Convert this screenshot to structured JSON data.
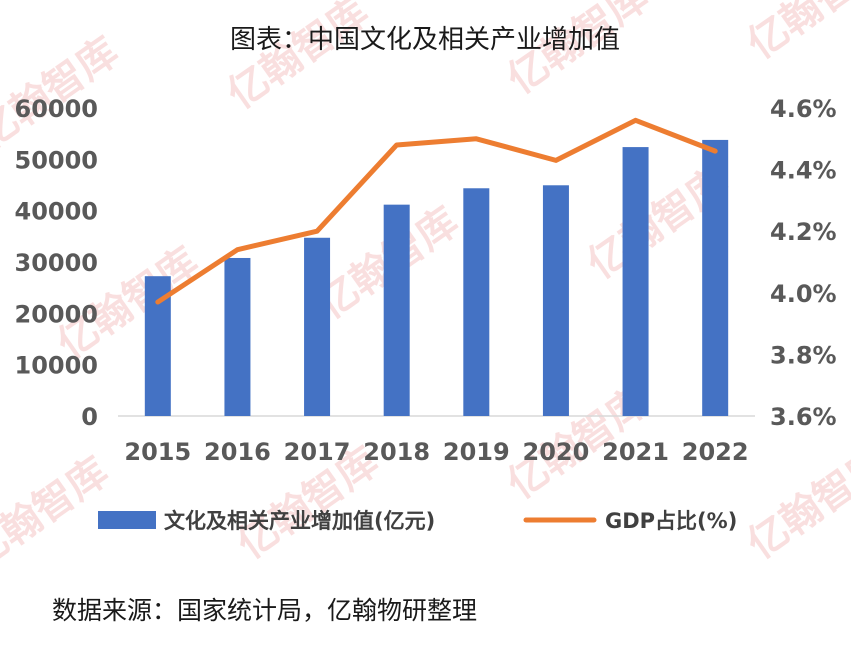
{
  "chart_data": {
    "type": "bar+line",
    "title": "图表：中国文化及相关产业增加值",
    "categories": [
      "2015",
      "2016",
      "2017",
      "2018",
      "2019",
      "2020",
      "2021",
      "2022"
    ],
    "series": [
      {
        "name": "文化及相关产业增加值(亿元)",
        "type": "bar",
        "axis": "left",
        "color": "#4472C4",
        "values": [
          27235,
          30785,
          34722,
          41171,
          44363,
          44945,
          52385,
          53782
        ]
      },
      {
        "name": "GDP占比(%)",
        "type": "line",
        "axis": "right",
        "color": "#ED7D31",
        "values": [
          3.97,
          4.14,
          4.2,
          4.48,
          4.5,
          4.43,
          4.56,
          4.46
        ]
      }
    ],
    "left_axis": {
      "ylim": [
        0,
        60000
      ],
      "ticks": [
        "0",
        "10000",
        "20000",
        "30000",
        "40000",
        "50000",
        "60000"
      ]
    },
    "right_axis": {
      "ylim": [
        3.6,
        4.6
      ],
      "ticks": [
        "3.6%",
        "3.8%",
        "4.0%",
        "4.2%",
        "4.4%",
        "4.6%"
      ]
    },
    "legend_position": "bottom",
    "grid": false
  },
  "source": "数据来源：国家统计局，亿翰物研整理",
  "watermark": "亿翰智库"
}
